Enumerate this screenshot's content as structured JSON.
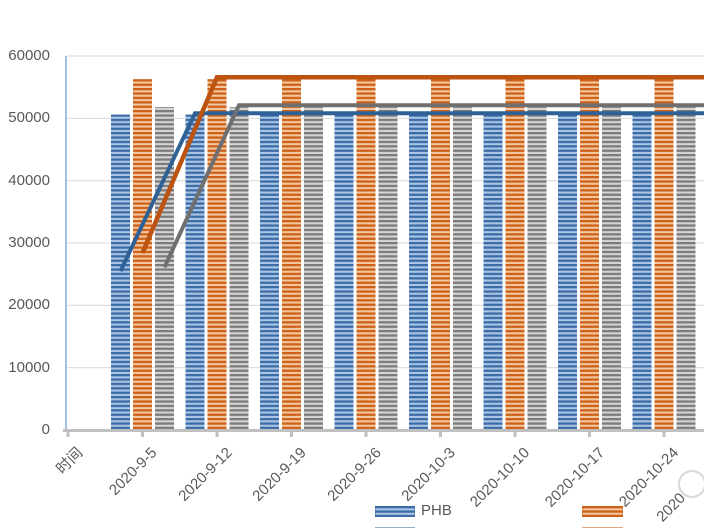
{
  "chart_data": {
    "type": "bar",
    "subtype": "combo-striped-bars-with-lines",
    "title": "",
    "xlabel": "",
    "ylabel": "",
    "categories": [
      "时间",
      "2020-9-5",
      "2020-9-12",
      "2020-9-19",
      "2020-9-26",
      "2020-10-3",
      "2020-10-10",
      "2020-10-17",
      "2020-10-24"
    ],
    "clipped_next_category_label": "2020",
    "y_ticks": [
      0,
      10000,
      20000,
      30000,
      40000,
      50000,
      60000
    ],
    "ylim": [
      0,
      60000
    ],
    "grid": true,
    "series": [
      {
        "name": "PHB",
        "kind": "bar",
        "stripe_dark": "#3c6ba6",
        "stripe_light": "#aac6e6",
        "values": [
          null,
          50600,
          50600,
          50600,
          50600,
          50600,
          50600,
          50600,
          50600
        ]
      },
      {
        "name": "",
        "kind": "bar",
        "stripe_dark": "#cd6118",
        "stripe_light": "#f3c79f",
        "values": [
          null,
          56300,
          56300,
          56300,
          56300,
          56300,
          56300,
          56300,
          56300
        ]
      },
      {
        "name": "",
        "kind": "bar",
        "stripe_dark": "#7b7b7b",
        "stripe_light": "#d5d5d5",
        "values": [
          null,
          51800,
          51800,
          51800,
          51800,
          51800,
          51800,
          51800,
          51800
        ]
      },
      {
        "name": "",
        "kind": "line",
        "color": "#2e6195",
        "values": [
          null,
          25500,
          50800,
          50800,
          50800,
          50800,
          50800,
          50800,
          50800
        ],
        "extends_past_right_edge": true
      },
      {
        "name": "",
        "kind": "line",
        "color": "#bc5310",
        "values": [
          null,
          28400,
          56600,
          56600,
          56600,
          56600,
          56600,
          56600,
          56600
        ],
        "extends_past_right_edge": true
      },
      {
        "name": "",
        "kind": "line",
        "color": "#6f6f6f",
        "values": [
          null,
          26100,
          52100,
          52100,
          52100,
          52100,
          52100,
          52100,
          52100
        ],
        "extends_past_right_edge": true
      }
    ],
    "legend": {
      "position": "bottom",
      "entries": [
        {
          "label": "PHB",
          "swatch": "blue-stripes"
        },
        {
          "label": "",
          "swatch": "orange-stripes"
        }
      ],
      "second_row_cut_off": true
    },
    "colors": {
      "axis_line": "#c0c0c0",
      "y_axis_line": "#9dc3e6",
      "gridline": "#d9d9d9",
      "text": "#595959"
    }
  }
}
